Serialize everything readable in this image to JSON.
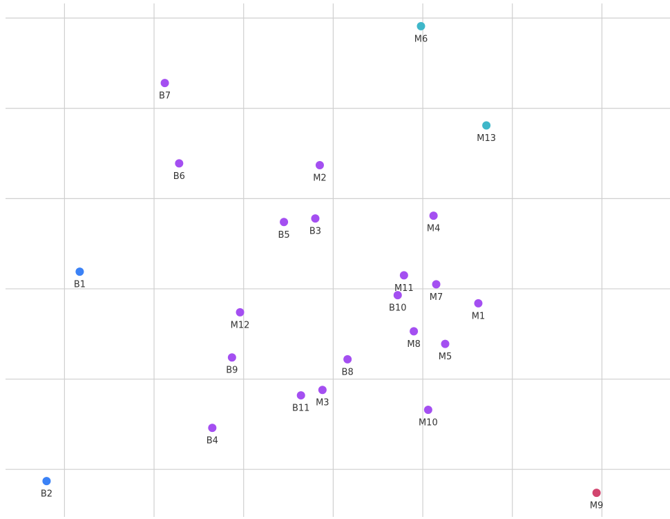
{
  "chart_data": {
    "type": "scatter",
    "x": [
      3.98,
      1.12,
      4.71,
      1.28,
      2.85,
      4.12,
      2.45,
      2.8,
      0.17,
      3.79,
      4.15,
      3.72,
      4.62,
      1.96,
      3.9,
      4.25,
      1.87,
      3.16,
      2.88,
      2.64,
      4.06,
      1.65,
      -0.2,
      5.94
    ],
    "values": [
      4.91,
      4.28,
      3.81,
      3.39,
      3.37,
      2.81,
      2.74,
      2.78,
      2.19,
      2.15,
      2.05,
      1.93,
      1.84,
      1.74,
      1.53,
      1.39,
      1.24,
      1.22,
      0.88,
      0.82,
      0.66,
      0.46,
      -0.13,
      -0.26
    ],
    "labels": [
      "M6",
      "B7",
      "M13",
      "B6",
      "M2",
      "M4",
      "B5",
      "B3",
      "B1",
      "M11",
      "M7",
      "B10",
      "M1",
      "M12",
      "M8",
      "M5",
      "B9",
      "B8",
      "M3",
      "B11",
      "M10",
      "B4",
      "B2",
      "M9"
    ],
    "colors": [
      "#3fb7c9",
      "#a44ff1",
      "#3fb7c9",
      "#a44ff1",
      "#a44ff1",
      "#a44ff1",
      "#a44ff1",
      "#a44ff1",
      "#3b82f6",
      "#a44ff1",
      "#a44ff1",
      "#a44ff1",
      "#a44ff1",
      "#a44ff1",
      "#a44ff1",
      "#a44ff1",
      "#a44ff1",
      "#a44ff1",
      "#a44ff1",
      "#a44ff1",
      "#a44ff1",
      "#a44ff1",
      "#3b82f6",
      "#d2456f"
    ],
    "xlim": [
      -0.72,
      6.76
    ],
    "ylim": [
      -0.55,
      5.2
    ],
    "xticks": [
      0,
      1,
      2,
      3,
      4,
      5,
      6
    ],
    "yticks": [
      0,
      1,
      2,
      3,
      4,
      5
    ],
    "grid": true
  }
}
